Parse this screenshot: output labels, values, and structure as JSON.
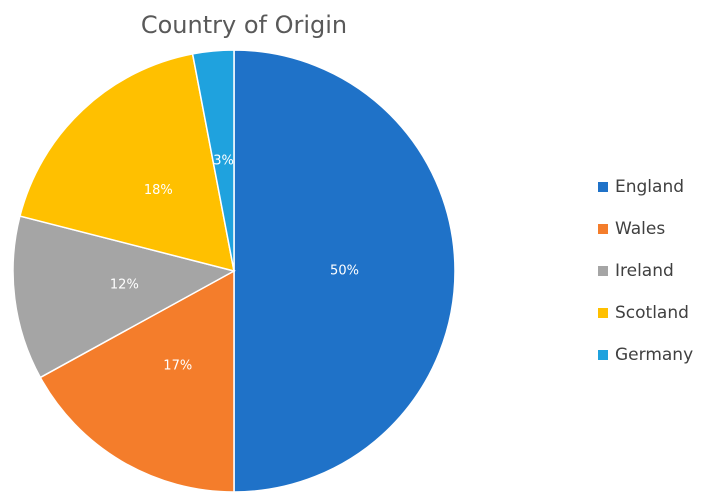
{
  "chart_data": {
    "type": "pie",
    "title": "Country of Origin",
    "categories": [
      "England",
      "Wales",
      "Ireland",
      "Scotland",
      "Germany"
    ],
    "values": [
      50,
      17,
      12,
      18,
      3
    ],
    "value_labels": [
      "50%",
      "17%",
      "12%",
      "18%",
      "3%"
    ],
    "colors": [
      "#1f72c8",
      "#f47d2b",
      "#a5a5a5",
      "#ffc000",
      "#1fa2de"
    ]
  }
}
